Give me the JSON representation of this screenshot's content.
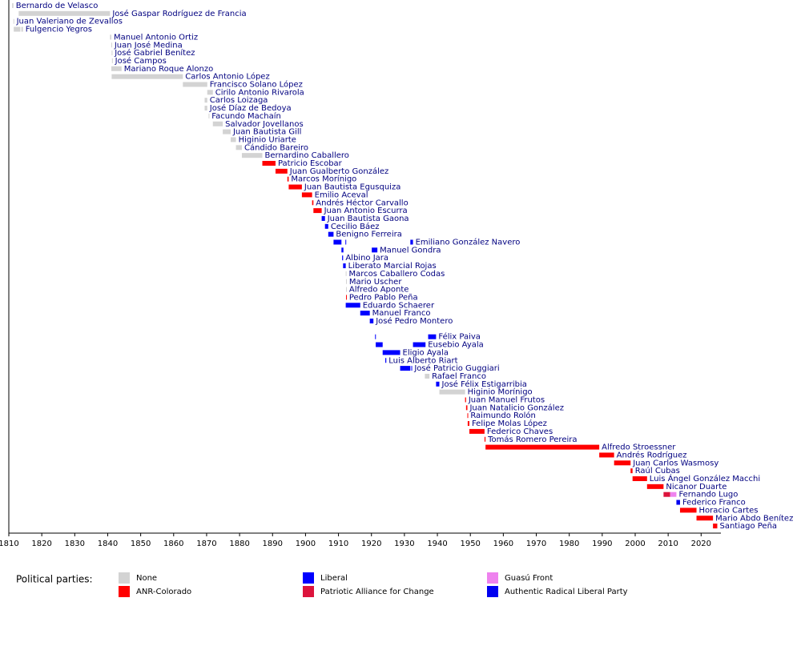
{
  "chart_data": {
    "type": "timeline",
    "xlim": [
      1810,
      2026
    ],
    "xticks": [
      1810,
      1820,
      1830,
      1840,
      1850,
      1860,
      1870,
      1880,
      1890,
      1900,
      1910,
      1920,
      1930,
      1940,
      1950,
      1960,
      1970,
      1980,
      1990,
      2000,
      2010,
      2020
    ],
    "legend": {
      "title": "Political parties:",
      "parties": [
        {
          "name": "None",
          "color": "#d3d3d3"
        },
        {
          "name": "ANR-Colorado",
          "color": "#ff0000"
        },
        {
          "name": "Liberal",
          "color": "#0000ff"
        },
        {
          "name": "Patriotic Alliance for Change",
          "color": "#dc143c"
        },
        {
          "name": "Guasú Front",
          "color": "#ee82ee"
        },
        {
          "name": "Authentic Radical Liberal Party",
          "color": "#0000f0"
        }
      ]
    },
    "rows": [
      {
        "name": "Bernardo de Velasco",
        "terms": [
          {
            "start": 1811.0,
            "end": 1811.4,
            "party": 0
          }
        ]
      },
      {
        "name": "José Gaspar Rodríguez de Francia",
        "terms": [
          {
            "start": 1813.0,
            "end": 1840.7,
            "party": 0
          }
        ]
      },
      {
        "name": "Juan Valeriano de Zevallos",
        "terms": [
          {
            "start": 1811.4,
            "end": 1811.6,
            "party": 0
          }
        ]
      },
      {
        "name": "Fulgencio Yegros",
        "terms": [
          {
            "start": 1811.5,
            "end": 1813.5,
            "party": 0
          },
          {
            "start": 1813.8,
            "end": 1814.3,
            "party": 0
          }
        ]
      },
      {
        "name": "Manuel Antonio Ortiz",
        "terms": [
          {
            "start": 1840.7,
            "end": 1841.1,
            "party": 0
          }
        ]
      },
      {
        "name": "Juan José Medina",
        "terms": [
          {
            "start": 1841.1,
            "end": 1841.3,
            "party": 0
          }
        ]
      },
      {
        "name": "José Gabriel Benítez",
        "terms": [
          {
            "start": 1841.2,
            "end": 1841.4,
            "party": 0
          }
        ]
      },
      {
        "name": "José Campos",
        "terms": [
          {
            "start": 1841.3,
            "end": 1841.5,
            "party": 0
          }
        ]
      },
      {
        "name": "Mariano Roque Alonzo",
        "terms": [
          {
            "start": 1841.1,
            "end": 1844.2,
            "party": 0
          }
        ]
      },
      {
        "name": "Carlos Antonio López",
        "terms": [
          {
            "start": 1841.2,
            "end": 1862.8,
            "party": 0
          }
        ]
      },
      {
        "name": "Francisco Solano López",
        "terms": [
          {
            "start": 1862.8,
            "end": 1870.2,
            "party": 0
          }
        ]
      },
      {
        "name": "Cirilo Antonio Rivarola",
        "terms": [
          {
            "start": 1870.2,
            "end": 1871.9,
            "party": 0
          }
        ]
      },
      {
        "name": "Carlos Loizaga",
        "terms": [
          {
            "start": 1869.4,
            "end": 1870.2,
            "party": 0
          }
        ]
      },
      {
        "name": "José Díaz de Bedoya",
        "terms": [
          {
            "start": 1869.4,
            "end": 1870.2,
            "party": 0
          }
        ]
      },
      {
        "name": "Facundo Machaín",
        "terms": [
          {
            "start": 1870.6,
            "end": 1870.8,
            "party": 0
          }
        ]
      },
      {
        "name": "Salvador Jovellanos",
        "terms": [
          {
            "start": 1871.9,
            "end": 1874.9,
            "party": 0
          }
        ]
      },
      {
        "name": "Juan Bautista Gill",
        "terms": [
          {
            "start": 1874.9,
            "end": 1877.3,
            "party": 0
          }
        ]
      },
      {
        "name": "Higinio Uriarte",
        "terms": [
          {
            "start": 1877.3,
            "end": 1878.9,
            "party": 0
          }
        ]
      },
      {
        "name": "Cándido Bareiro",
        "terms": [
          {
            "start": 1878.9,
            "end": 1880.7,
            "party": 0
          }
        ]
      },
      {
        "name": "Bernardino Caballero",
        "terms": [
          {
            "start": 1880.7,
            "end": 1886.9,
            "party": 0
          }
        ]
      },
      {
        "name": "Patricio Escobar",
        "terms": [
          {
            "start": 1886.9,
            "end": 1890.9,
            "party": 1
          }
        ]
      },
      {
        "name": "Juan Gualberto González",
        "terms": [
          {
            "start": 1890.9,
            "end": 1894.5,
            "party": 1
          }
        ]
      },
      {
        "name": "Marcos Morínigo",
        "terms": [
          {
            "start": 1894.5,
            "end": 1894.9,
            "party": 1
          }
        ]
      },
      {
        "name": "Juan Bautista Egusquiza",
        "terms": [
          {
            "start": 1894.9,
            "end": 1898.9,
            "party": 1
          }
        ]
      },
      {
        "name": "Emilio Aceval",
        "terms": [
          {
            "start": 1898.9,
            "end": 1902.0,
            "party": 1
          }
        ]
      },
      {
        "name": "Andrés Héctor Carvallo",
        "terms": [
          {
            "start": 1902.0,
            "end": 1902.4,
            "party": 1
          }
        ]
      },
      {
        "name": "Juan Antonio Escurra",
        "terms": [
          {
            "start": 1902.4,
            "end": 1904.9,
            "party": 1
          }
        ]
      },
      {
        "name": "Juan Bautista Gaona",
        "terms": [
          {
            "start": 1904.9,
            "end": 1905.9,
            "party": 2
          }
        ]
      },
      {
        "name": "Cecilio Báez",
        "terms": [
          {
            "start": 1905.9,
            "end": 1906.9,
            "party": 2
          }
        ]
      },
      {
        "name": "Benigno Ferreira",
        "terms": [
          {
            "start": 1906.9,
            "end": 1908.5,
            "party": 2
          }
        ]
      },
      {
        "name": "Emiliano González Navero",
        "terms": [
          {
            "start": 1908.5,
            "end": 1910.9,
            "party": 2
          },
          {
            "start": 1912.1,
            "end": 1912.3,
            "party": 2
          },
          {
            "start": 1931.8,
            "end": 1932.6,
            "party": 2
          }
        ]
      },
      {
        "name": "Manuel Gondra",
        "terms": [
          {
            "start": 1910.9,
            "end": 1911.5,
            "party": 2
          },
          {
            "start": 1920.1,
            "end": 1921.8,
            "party": 2
          }
        ]
      },
      {
        "name": "Albino Jara",
        "terms": [
          {
            "start": 1911.1,
            "end": 1911.4,
            "party": 2
          }
        ]
      },
      {
        "name": "Liberato Marcial Rojas",
        "terms": [
          {
            "start": 1911.4,
            "end": 1912.2,
            "party": 2
          }
        ]
      },
      {
        "name": "Marcos Caballero Codas",
        "terms": [
          {
            "start": 1912.2,
            "end": 1912.4,
            "party": 0
          }
        ]
      },
      {
        "name": "Mario Uscher",
        "terms": [
          {
            "start": 1912.3,
            "end": 1912.5,
            "party": 0
          }
        ]
      },
      {
        "name": "Alfredo Aponte",
        "terms": [
          {
            "start": 1912.3,
            "end": 1912.5,
            "party": 0
          }
        ]
      },
      {
        "name": "Pedro Pablo Peña",
        "terms": [
          {
            "start": 1912.3,
            "end": 1912.5,
            "party": 1
          }
        ]
      },
      {
        "name": "Eduardo Schaerer",
        "terms": [
          {
            "start": 1912.2,
            "end": 1916.6,
            "party": 2
          }
        ]
      },
      {
        "name": "Manuel Franco",
        "terms": [
          {
            "start": 1916.6,
            "end": 1919.5,
            "party": 2
          }
        ]
      },
      {
        "name": "José Pedro Montero",
        "terms": [
          {
            "start": 1919.5,
            "end": 1920.6,
            "party": 2
          }
        ]
      },
      {
        "name": "Félix Paiva",
        "terms": [
          {
            "start": 1921.1,
            "end": 1921.3,
            "party": 2
          },
          {
            "start": 1937.2,
            "end": 1939.6,
            "party": 2
          }
        ]
      },
      {
        "name": "Eusebio Ayala",
        "terms": [
          {
            "start": 1921.3,
            "end": 1923.4,
            "party": 2
          },
          {
            "start": 1932.6,
            "end": 1936.4,
            "party": 2
          }
        ]
      },
      {
        "name": "Eligio Ayala",
        "terms": [
          {
            "start": 1923.4,
            "end": 1928.7,
            "party": 2
          }
        ]
      },
      {
        "name": "Luis Alberto Riart",
        "terms": [
          {
            "start": 1924.2,
            "end": 1924.5,
            "party": 2
          }
        ]
      },
      {
        "name": "José Patricio Guggiari",
        "terms": [
          {
            "start": 1928.7,
            "end": 1931.8,
            "party": 2
          },
          {
            "start": 1932.1,
            "end": 1932.3,
            "party": 2
          }
        ]
      },
      {
        "name": "Rafael Franco",
        "terms": [
          {
            "start": 1936.2,
            "end": 1937.6,
            "party": 0
          }
        ]
      },
      {
        "name": "José Félix Estigarribia",
        "terms": [
          {
            "start": 1939.6,
            "end": 1940.6,
            "party": 2
          }
        ]
      },
      {
        "name": "Higinio Morínigo",
        "terms": [
          {
            "start": 1940.6,
            "end": 1948.4,
            "party": 0
          }
        ]
      },
      {
        "name": "Juan Manuel Frutos",
        "terms": [
          {
            "start": 1948.4,
            "end": 1948.7,
            "party": 1
          }
        ]
      },
      {
        "name": "Juan Natalicio González",
        "terms": [
          {
            "start": 1948.7,
            "end": 1949.1,
            "party": 1
          }
        ]
      },
      {
        "name": "Raimundo Rolón",
        "terms": [
          {
            "start": 1949.1,
            "end": 1949.3,
            "party": 1
          }
        ]
      },
      {
        "name": "Felipe Molas López",
        "terms": [
          {
            "start": 1949.2,
            "end": 1949.7,
            "party": 1
          }
        ]
      },
      {
        "name": "Federico Chaves",
        "terms": [
          {
            "start": 1949.7,
            "end": 1954.3,
            "party": 1
          }
        ]
      },
      {
        "name": "Tomás Romero Pereira",
        "terms": [
          {
            "start": 1954.3,
            "end": 1954.6,
            "party": 1
          }
        ]
      },
      {
        "name": "Alfredo Stroessner",
        "terms": [
          {
            "start": 1954.6,
            "end": 1989.1,
            "party": 1
          }
        ]
      },
      {
        "name": "Andrés Rodríguez",
        "terms": [
          {
            "start": 1989.1,
            "end": 1993.6,
            "party": 1
          }
        ]
      },
      {
        "name": "Juan Carlos Wasmosy",
        "terms": [
          {
            "start": 1993.6,
            "end": 1998.6,
            "party": 1
          }
        ]
      },
      {
        "name": "Raúl Cubas",
        "terms": [
          {
            "start": 1998.6,
            "end": 1999.2,
            "party": 1
          }
        ]
      },
      {
        "name": "Luis Ángel González Macchi",
        "terms": [
          {
            "start": 1999.2,
            "end": 2003.6,
            "party": 1
          }
        ]
      },
      {
        "name": "Nicanor Duarte",
        "terms": [
          {
            "start": 2003.6,
            "end": 2008.6,
            "party": 1
          }
        ]
      },
      {
        "name": "Fernando Lugo",
        "terms": [
          {
            "start": 2008.6,
            "end": 2010.6,
            "party": 3
          },
          {
            "start": 2010.6,
            "end": 2012.5,
            "party": 4
          }
        ]
      },
      {
        "name": "Federico Franco",
        "terms": [
          {
            "start": 2012.5,
            "end": 2013.6,
            "party": 5
          }
        ]
      },
      {
        "name": "Horacio Cartes",
        "terms": [
          {
            "start": 2013.6,
            "end": 2018.6,
            "party": 1
          }
        ]
      },
      {
        "name": "Mario Abdo Benítez",
        "terms": [
          {
            "start": 2018.6,
            "end": 2023.6,
            "party": 1
          }
        ]
      },
      {
        "name": "Santiago Peña",
        "terms": [
          {
            "start": 2023.6,
            "end": 2024.9,
            "party": 1
          }
        ]
      }
    ]
  }
}
